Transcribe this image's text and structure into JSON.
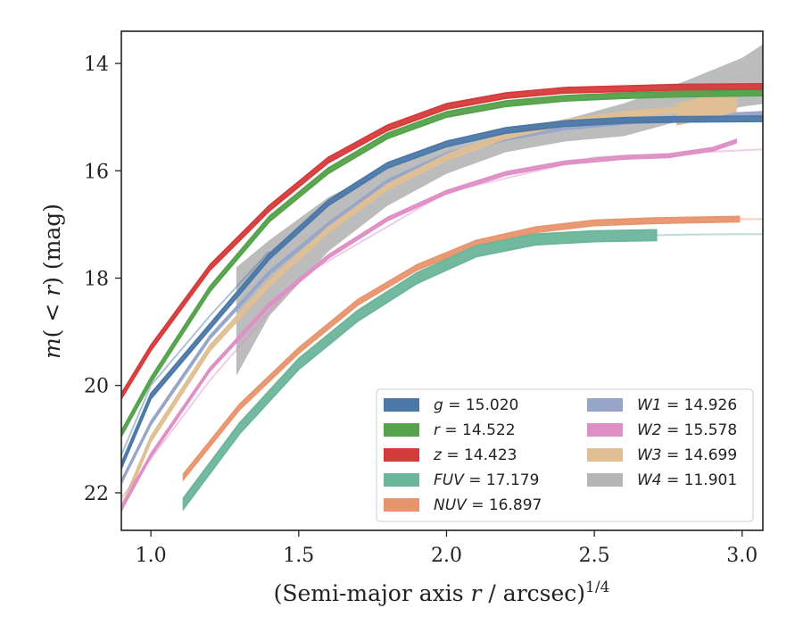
{
  "chart_data": {
    "type": "line",
    "xlabel": "(Semi-major axis r / arcsec)^{1/4}",
    "ylabel": "m(<r) (mag)",
    "xlim": [
      0.9,
      3.07
    ],
    "ylim": [
      22.7,
      13.4
    ],
    "y_inverted": true,
    "xticks": [
      "1.0",
      "1.5",
      "2.0",
      "2.5",
      "3.0"
    ],
    "yticks": [
      "14",
      "16",
      "18",
      "20",
      "22"
    ],
    "legend_position": "lower-right",
    "series": [
      {
        "name": "g = 15.020",
        "color": "#4c78a8",
        "x": [
          0.9,
          1.0,
          1.2,
          1.4,
          1.6,
          1.8,
          2.0,
          2.2,
          2.4,
          2.6,
          2.8,
          3.07
        ],
        "values": [
          21.5,
          20.2,
          18.9,
          17.6,
          16.6,
          15.9,
          15.5,
          15.25,
          15.12,
          15.06,
          15.04,
          15.03
        ],
        "band_halfwidth": 0.05,
        "faint_extension": {
          "x": [
            0.9,
            1.0,
            1.2,
            1.4
          ],
          "values": [
            21.3,
            20.0,
            18.7,
            17.5
          ]
        }
      },
      {
        "name": "r = 14.522",
        "color": "#54a24b",
        "x": [
          0.9,
          1.0,
          1.2,
          1.4,
          1.6,
          1.8,
          2.0,
          2.2,
          2.4,
          2.6,
          2.8,
          3.07
        ],
        "values": [
          20.9,
          19.9,
          18.2,
          16.9,
          16.0,
          15.35,
          14.95,
          14.75,
          14.65,
          14.6,
          14.57,
          14.55
        ],
        "band_halfwidth": 0.05
      },
      {
        "name": "z = 14.423",
        "color": "#d63b3b",
        "x": [
          0.9,
          1.0,
          1.2,
          1.4,
          1.6,
          1.8,
          2.0,
          2.2,
          2.4,
          2.6,
          2.8,
          3.07
        ],
        "values": [
          20.2,
          19.3,
          17.8,
          16.7,
          15.8,
          15.2,
          14.8,
          14.6,
          14.5,
          14.47,
          14.44,
          14.43
        ],
        "band_halfwidth": 0.05
      },
      {
        "name": "FUV = 17.179",
        "color": "#6bb59b",
        "x": [
          1.11,
          1.3,
          1.5,
          1.7,
          1.9,
          2.1,
          2.3,
          2.5,
          2.71
        ],
        "values": [
          22.2,
          20.8,
          19.6,
          18.7,
          18.0,
          17.5,
          17.28,
          17.22,
          17.2
        ],
        "band_halfwidth": 0.1,
        "faint_extension": {
          "x": [
            2.71,
            2.8,
            3.0,
            3.07
          ],
          "values": [
            17.2,
            17.19,
            17.18,
            17.18
          ]
        }
      },
      {
        "name": "NUV = 16.897",
        "color": "#e8956d",
        "x": [
          1.11,
          1.3,
          1.5,
          1.7,
          1.9,
          2.1,
          2.3,
          2.5,
          2.7,
          2.99
        ],
        "values": [
          21.7,
          20.4,
          19.35,
          18.45,
          17.8,
          17.35,
          17.1,
          16.97,
          16.93,
          16.9
        ],
        "band_halfwidth": 0.05,
        "faint_extension": {
          "x": [
            2.99,
            3.07
          ],
          "values": [
            16.9,
            16.9
          ]
        }
      },
      {
        "name": "W1 = 14.926",
        "color": "#97a6c8",
        "x": [
          0.9,
          1.0,
          1.2,
          1.4,
          1.6,
          1.8,
          2.0,
          2.2,
          2.4,
          2.6,
          2.8,
          3.07
        ],
        "values": [
          21.8,
          20.7,
          19.1,
          17.9,
          17.0,
          16.2,
          15.7,
          15.4,
          15.2,
          15.1,
          15.0,
          14.93
        ],
        "band_halfwidth": 0.03
      },
      {
        "name": "W2 = 15.578",
        "color": "#de8fc5",
        "x": [
          0.9,
          1.0,
          1.2,
          1.4,
          1.6,
          1.8,
          2.0,
          2.2,
          2.4,
          2.6,
          2.75,
          2.9,
          2.98
        ],
        "values": [
          22.3,
          21.3,
          19.7,
          18.5,
          17.6,
          16.9,
          16.4,
          16.05,
          15.85,
          15.75,
          15.72,
          15.6,
          15.45
        ],
        "band_halfwidth": 0.03,
        "faint_extension": {
          "x": [
            0.9,
            1.2,
            1.5,
            2.0,
            2.5,
            3.07
          ],
          "values": [
            22.1,
            19.9,
            18.0,
            16.4,
            15.75,
            15.6
          ]
        }
      },
      {
        "name": "W3 = 14.699",
        "color": "#dfbf93",
        "x": [
          0.9,
          1.0,
          1.2,
          1.4,
          1.6,
          1.8,
          2.0,
          2.2,
          2.4,
          2.6,
          2.8,
          2.98
        ],
        "values": [
          22.3,
          21.0,
          19.3,
          18.1,
          17.1,
          16.3,
          15.75,
          15.35,
          15.1,
          14.95,
          14.85,
          14.75
        ],
        "band_halfwidth": 0.05,
        "band_end": {
          "x": [
            2.78,
            2.9,
            2.98
          ],
          "values": [
            14.95,
            14.8,
            14.7
          ],
          "halfwidth": 0.2
        }
      },
      {
        "name": "W4 = 11.901",
        "color": "#b5b5b5",
        "x": [
          1.29,
          1.4,
          1.6,
          1.8,
          2.0,
          2.2,
          2.4,
          2.6,
          2.8,
          3.0,
          3.07
        ],
        "values": [
          18.8,
          18.0,
          17.0,
          16.3,
          15.8,
          15.45,
          15.25,
          15.05,
          14.7,
          14.35,
          14.2
        ],
        "band_halfwidth": [
          1.0,
          0.7,
          0.5,
          0.35,
          0.25,
          0.2,
          0.2,
          0.3,
          0.35,
          0.45,
          0.55
        ],
        "faint_extension": {
          "x": [
            2.6,
            2.8,
            3.07
          ],
          "values": [
            15.05,
            14.6,
            14.1
          ]
        }
      }
    ],
    "legend": {
      "left": [
        {
          "sym": "g",
          "val": "15.020",
          "color": "#4c78a8"
        },
        {
          "sym": "r",
          "val": "14.522",
          "color": "#54a24b"
        },
        {
          "sym": "z",
          "val": "14.423",
          "color": "#d63b3b"
        },
        {
          "sym": "FUV",
          "val": "17.179",
          "color": "#6bb59b"
        },
        {
          "sym": "NUV",
          "val": "16.897",
          "color": "#e8956d"
        }
      ],
      "right": [
        {
          "sym": "W1",
          "val": "14.926",
          "color": "#97a6c8"
        },
        {
          "sym": "W2",
          "val": "15.578",
          "color": "#de8fc5"
        },
        {
          "sym": "W3",
          "val": "14.699",
          "color": "#dfbf93"
        },
        {
          "sym": "W4",
          "val": "11.901",
          "color": "#b5b5b5"
        }
      ]
    }
  }
}
